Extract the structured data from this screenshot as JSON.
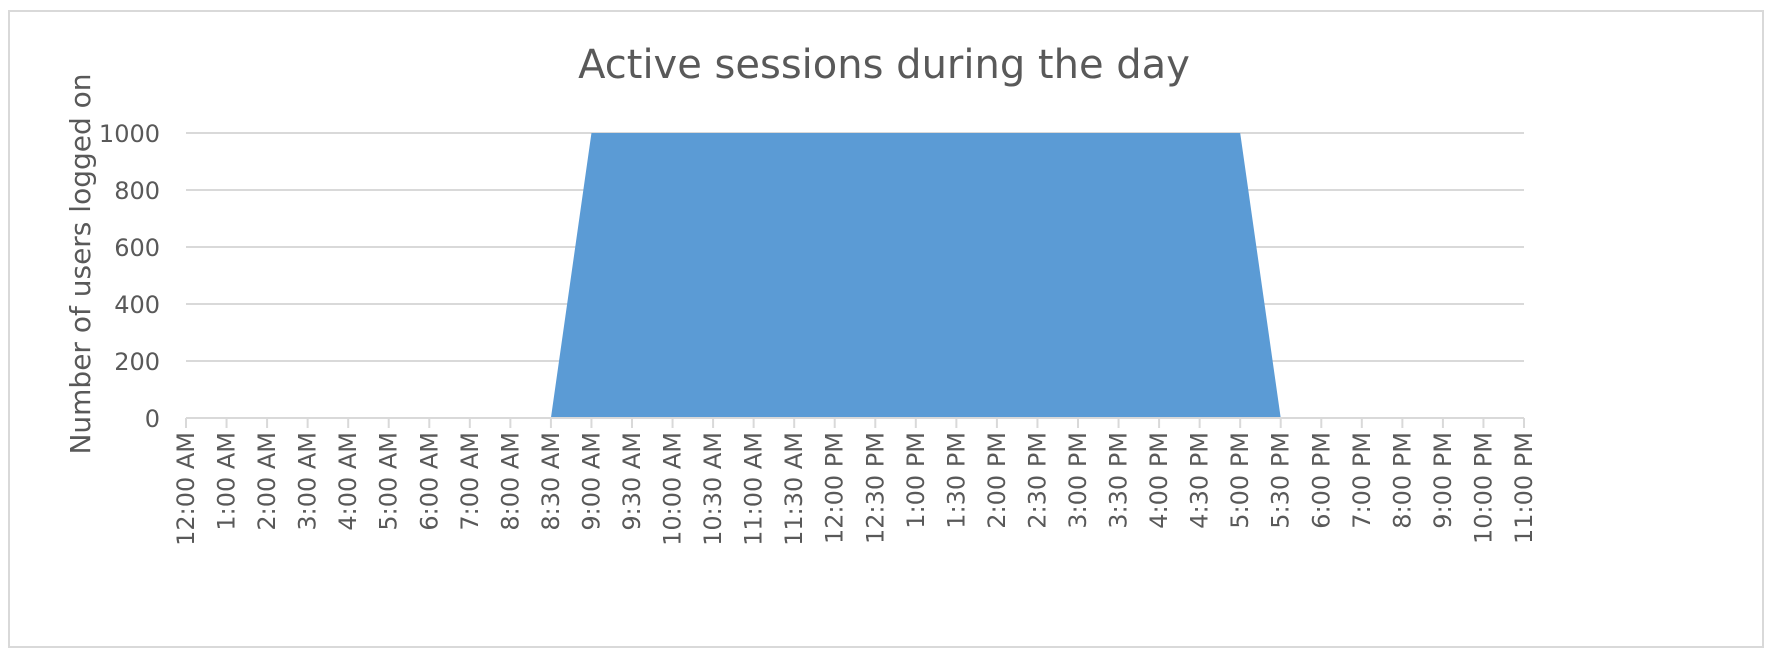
{
  "chart_data": {
    "type": "area",
    "title": "Active sessions during the day",
    "ylabel": "Number of users logged on",
    "xlabel": "",
    "ylim": [
      0,
      1000
    ],
    "yticks": [
      0,
      200,
      400,
      600,
      800,
      1000
    ],
    "grid": true,
    "legend": "none",
    "x": [
      "12:00 AM",
      "1:00 AM",
      "2:00 AM",
      "3:00 AM",
      "4:00 AM",
      "5:00 AM",
      "6:00 AM",
      "7:00 AM",
      "8:00 AM",
      "8:30 AM",
      "9:00 AM",
      "9:30 AM",
      "10:00 AM",
      "10:30 AM",
      "11:00 AM",
      "11:30 AM",
      "12:00 PM",
      "12:30 PM",
      "1:00 PM",
      "1:30 PM",
      "2:00 PM",
      "2:30 PM",
      "3:00 PM",
      "3:30 PM",
      "4:00 PM",
      "4:30 PM",
      "5:00 PM",
      "5:30 PM",
      "6:00 PM",
      "7:00 PM",
      "8:00 PM",
      "9:00 PM",
      "10:00 PM",
      "11:00 PM"
    ],
    "series": [
      {
        "values": [
          0,
          0,
          0,
          0,
          0,
          0,
          0,
          0,
          0,
          0,
          1000,
          1000,
          1000,
          1000,
          1000,
          1000,
          1000,
          1000,
          1000,
          1000,
          1000,
          1000,
          1000,
          1000,
          1000,
          1000,
          1000,
          0,
          0,
          0,
          0,
          0,
          0,
          0
        ],
        "color": "#5b9bd5"
      }
    ]
  }
}
